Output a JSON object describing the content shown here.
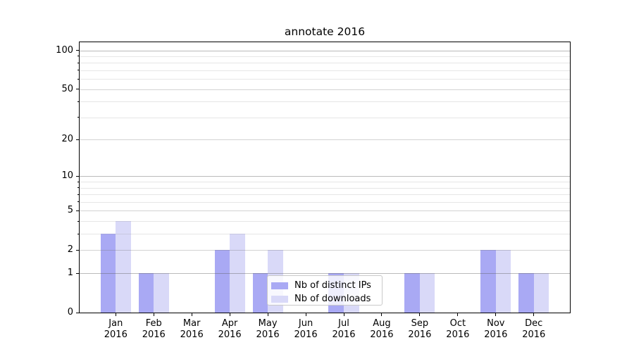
{
  "chart_data": {
    "type": "bar",
    "title": "annotate 2016",
    "categories": [
      "Jan 2016",
      "Feb 2016",
      "Mar 2016",
      "Apr 2016",
      "May 2016",
      "Jun 2016",
      "Jul 2016",
      "Aug 2016",
      "Sep 2016",
      "Oct 2016",
      "Nov 2016",
      "Dec 2016"
    ],
    "x_tick_line1": [
      "Jan",
      "Feb",
      "Mar",
      "Apr",
      "May",
      "Jun",
      "Jul",
      "Aug",
      "Sep",
      "Oct",
      "Nov",
      "Dec"
    ],
    "x_tick_line2": [
      "2016",
      "2016",
      "2016",
      "2016",
      "2016",
      "2016",
      "2016",
      "2016",
      "2016",
      "2016",
      "2016",
      "2016"
    ],
    "series": [
      {
        "name": "Nb of distinct IPs",
        "color": "#a9a9f4",
        "values": [
          3,
          1,
          0,
          2,
          1,
          0,
          1,
          0,
          1,
          0,
          2,
          1
        ]
      },
      {
        "name": "Nb of downloads",
        "color": "#d9d9f8",
        "values": [
          4,
          1,
          0,
          3,
          2,
          0,
          1,
          0,
          1,
          0,
          2,
          1
        ]
      }
    ],
    "xlabel": "",
    "ylabel": "",
    "y_scale": "log1p",
    "ylim": [
      0,
      116
    ],
    "y_tick_values": [
      0,
      1,
      2,
      5,
      10,
      20,
      50,
      100
    ],
    "y_tick_labels": [
      "0",
      "1",
      "2",
      "5",
      "10",
      "20",
      "50",
      "100"
    ],
    "y_grid_major": [
      1,
      10,
      100
    ],
    "y_grid_mid": [
      2,
      5,
      20,
      50
    ],
    "y_grid_minor": [
      3,
      4,
      6,
      7,
      8,
      9,
      30,
      40,
      60,
      70,
      80,
      90
    ],
    "grid": "on",
    "legend_position": "lower center"
  },
  "colors": {
    "axis": "#000000",
    "grid_major": "rgba(90,90,90,0.42)",
    "grid_mid": "rgba(110,110,110,0.30)",
    "grid_minor": "rgba(140,140,140,0.22)",
    "legend_border": "#c9c9c9",
    "background": "#ffffff"
  }
}
